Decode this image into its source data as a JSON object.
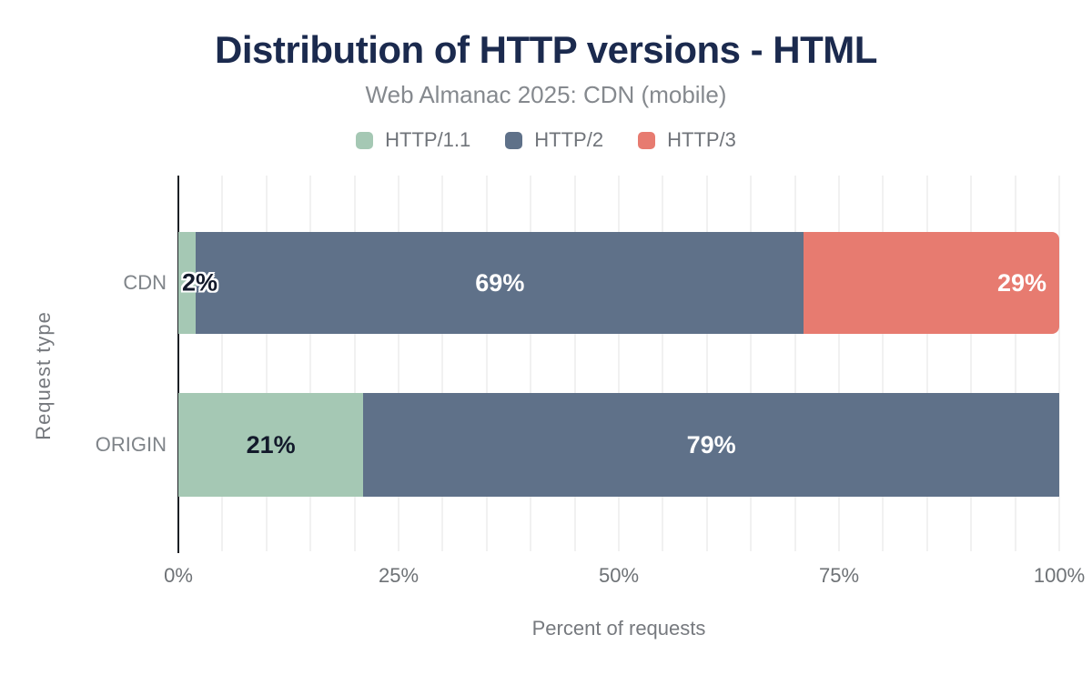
{
  "chart_data": {
    "type": "bar",
    "orientation": "horizontal",
    "stacked": true,
    "title": "Distribution of HTTP versions - HTML",
    "subtitle": "Web Almanac 2025: CDN (mobile)",
    "xlabel": "Percent of requests",
    "ylabel": "Request type",
    "categories": [
      "CDN",
      "ORIGIN"
    ],
    "series": [
      {
        "name": "HTTP/1.1",
        "color": "#a5c8b4",
        "label_color": "#131a2b",
        "label_align": "center",
        "values": [
          2,
          21
        ]
      },
      {
        "name": "HTTP/2",
        "color": "#5f7189",
        "label_color": "#ffffff",
        "label_align": "center",
        "values": [
          69,
          79
        ]
      },
      {
        "name": "HTTP/3",
        "color": "#e77b70",
        "label_color": "#ffffff",
        "label_align": "right",
        "values": [
          29,
          0
        ]
      }
    ],
    "data_labels": {
      "CDN": [
        "2%",
        "69%",
        "29%"
      ],
      "ORIGIN": [
        "21%",
        "79%",
        ""
      ]
    },
    "xlim": [
      0,
      100
    ],
    "x_ticks": [
      "0%",
      "25%",
      "50%",
      "75%",
      "100%"
    ],
    "grid": {
      "vertical": true,
      "interval_percent": 5
    },
    "legend_position": "top"
  },
  "palette": {
    "title_text": "#1b2a4e",
    "subtitle_text": "#85898e",
    "axis_text": "#6e7276",
    "category_text": "#7f8489",
    "gridline": "#f1f1f1",
    "axis_line": "#1c2025",
    "background": "#ffffff"
  }
}
